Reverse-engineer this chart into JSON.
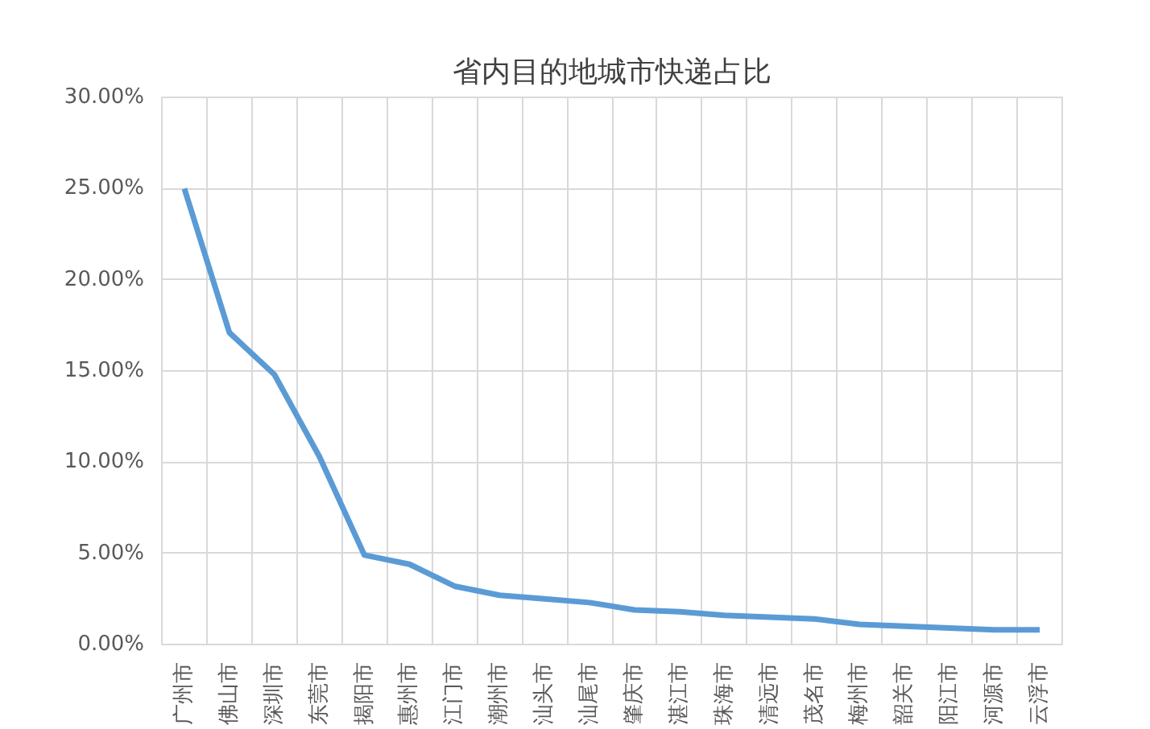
{
  "chart_data": {
    "type": "line",
    "title": "省内目的地城市快递占比",
    "categories": [
      "广州市",
      "佛山市",
      "深圳市",
      "东莞市",
      "揭阳市",
      "惠州市",
      "江门市",
      "潮州市",
      "汕头市",
      "汕尾市",
      "肇庆市",
      "湛江市",
      "珠海市",
      "清远市",
      "茂名市",
      "梅州市",
      "韶关市",
      "阳江市",
      "河源市",
      "云浮市"
    ],
    "series": [
      {
        "color": "#5b9bd5",
        "values": [
          25.0,
          17.1,
          14.8,
          10.3,
          4.9,
          4.4,
          3.2,
          2.7,
          2.5,
          2.3,
          1.9,
          1.8,
          1.6,
          1.5,
          1.4,
          1.1,
          1.0,
          0.9,
          0.8,
          0.8
        ]
      }
    ],
    "ylim": [
      0,
      30
    ],
    "yticks": [
      {
        "value": 0,
        "label": "0.00%"
      },
      {
        "value": 5,
        "label": "5.00%"
      },
      {
        "value": 10,
        "label": "10.00%"
      },
      {
        "value": 15,
        "label": "15.00%"
      },
      {
        "value": 20,
        "label": "20.00%"
      },
      {
        "value": 25,
        "label": "25.00%"
      },
      {
        "value": 30,
        "label": "30.00%"
      }
    ],
    "grid": true,
    "marker": "none",
    "line_style": "solid"
  }
}
